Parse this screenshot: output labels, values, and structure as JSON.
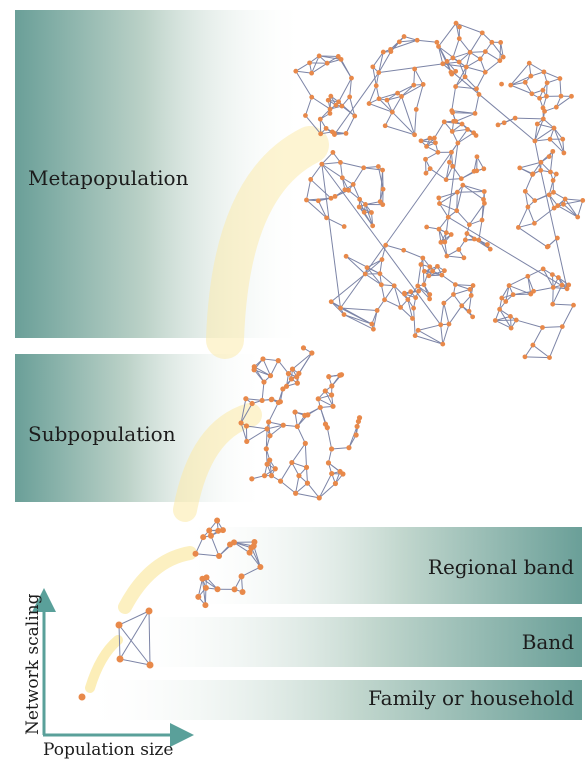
{
  "levels": {
    "metapopulation": "Metapopulation",
    "subpopulation": "Subpopulation",
    "regional_band": "Regional band",
    "band": "Band",
    "family": "Family or household"
  },
  "axes": {
    "x_label": "Population size",
    "y_label": "Network scaling"
  },
  "colors": {
    "band_teal": "#5f9c96",
    "glow_yellow": "#fbeaa6",
    "node_orange": "#e8894a",
    "edge_slate": "#7c84a6",
    "axis_teal": "#5aa09a"
  }
}
